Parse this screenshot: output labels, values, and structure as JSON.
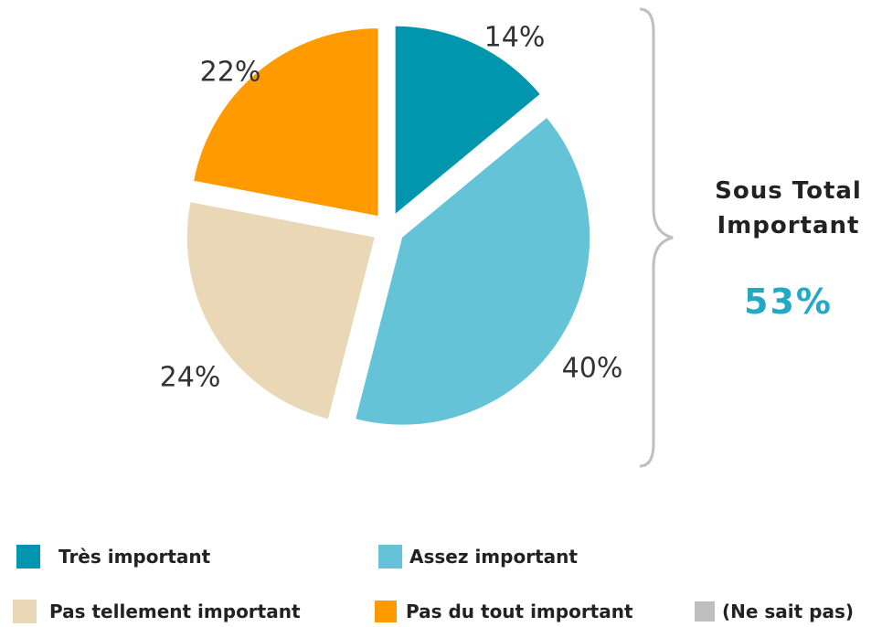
{
  "chart_data": {
    "type": "pie",
    "title": "",
    "categories": [
      "Très important",
      "Assez important",
      "Pas tellement important",
      "Pas du tout important",
      "(Ne sait pas)"
    ],
    "values": [
      14,
      40,
      24,
      22,
      0
    ],
    "labels": [
      "14%",
      "40%",
      "24%",
      "22%",
      ""
    ],
    "colors": [
      "#0096ad",
      "#64c3d6",
      "#e9d7b6",
      "#ff9a00",
      "#bfbfbf"
    ],
    "legend_position": "bottom",
    "annotation": {
      "title_line1": "Sous Total",
      "title_line2": "Important",
      "value": "53%"
    }
  }
}
